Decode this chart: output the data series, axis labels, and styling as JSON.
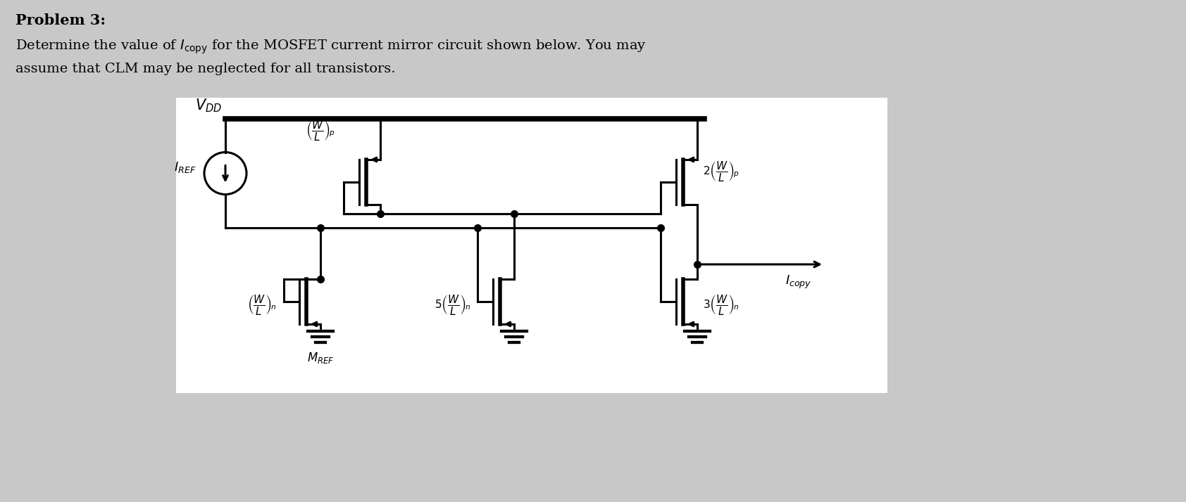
{
  "bg_color": "#c8c8c8",
  "white": "#ffffff",
  "black": "#000000",
  "fig_width": 16.84,
  "fig_height": 7.14,
  "dpi": 100,
  "title1": "Problem 3:",
  "title2": "Determine the value of $I_{\\mathrm{copy}}$ for the MOSFET current mirror circuit shown below. You may",
  "title3": "assume that CLM may be neglected for all transistors."
}
